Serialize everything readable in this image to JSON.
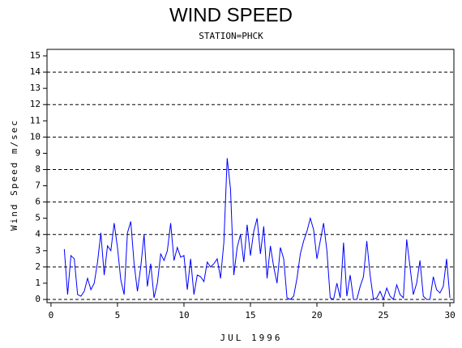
{
  "chart_data": {
    "type": "line",
    "title": "WIND SPEED",
    "subtitle": "STATION=PHCK",
    "y_label": "Wind Speed m/sec",
    "x_label": "JUL 1996",
    "color": "#0000ff",
    "grid": true,
    "xlim": [
      -0.3,
      30.3
    ],
    "xticks": [
      0,
      5,
      10,
      15,
      20,
      25,
      30
    ],
    "ylim": [
      -0.2,
      15.4
    ],
    "yticks": [
      0,
      1,
      2,
      3,
      4,
      5,
      6,
      7,
      8,
      9,
      10,
      11,
      12,
      13,
      14,
      15
    ],
    "gridlines": [
      0,
      2,
      4,
      6,
      8,
      10,
      12,
      14
    ],
    "x": [
      1,
      1.25,
      1.5,
      1.75,
      2,
      2.25,
      2.5,
      2.75,
      3,
      3.25,
      3.5,
      3.75,
      4,
      4.25,
      4.5,
      4.75,
      5,
      5.25,
      5.5,
      5.75,
      6,
      6.25,
      6.5,
      6.75,
      7,
      7.25,
      7.5,
      7.75,
      8,
      8.25,
      8.5,
      8.75,
      9,
      9.25,
      9.5,
      9.75,
      10,
      10.25,
      10.5,
      10.75,
      11,
      11.25,
      11.5,
      11.75,
      12,
      12.25,
      12.5,
      12.75,
      13,
      13.25,
      13.5,
      13.75,
      14,
      14.25,
      14.5,
      14.75,
      15,
      15.25,
      15.5,
      15.75,
      16,
      16.25,
      16.5,
      16.75,
      17,
      17.25,
      17.5,
      17.75,
      18,
      18.25,
      18.5,
      18.75,
      19,
      19.25,
      19.5,
      19.75,
      20,
      20.25,
      20.5,
      20.75,
      21,
      21.25,
      21.5,
      21.75,
      22,
      22.25,
      22.5,
      22.75,
      23,
      23.25,
      23.5,
      23.75,
      24,
      24.25,
      24.5,
      24.75,
      25,
      25.25,
      25.5,
      25.75,
      26,
      26.25,
      26.5,
      26.75,
      27,
      27.25,
      27.5,
      27.75,
      28,
      28.25,
      28.5,
      28.75,
      29,
      29.25,
      29.5,
      29.75,
      30
    ],
    "values": [
      3.1,
      0.3,
      2.7,
      2.5,
      0.3,
      0.2,
      0.5,
      1.3,
      0.6,
      1.0,
      2.3,
      4.1,
      1.5,
      3.3,
      3.0,
      4.7,
      3.2,
      1.2,
      0.3,
      4.1,
      4.8,
      2.2,
      0.5,
      2.0,
      4.0,
      0.8,
      2.2,
      0.1,
      1.0,
      2.8,
      2.4,
      3.0,
      4.7,
      2.4,
      3.2,
      2.6,
      2.7,
      0.6,
      2.5,
      0.3,
      1.5,
      1.4,
      1.1,
      2.3,
      2.0,
      2.2,
      2.5,
      1.3,
      3.5,
      8.7,
      6.8,
      1.5,
      3.2,
      4.0,
      2.3,
      4.6,
      2.7,
      4.2,
      5.0,
      2.8,
      4.5,
      1.3,
      3.3,
      2.0,
      1.0,
      3.2,
      2.5,
      0.1,
      0.0,
      0.2,
      1.3,
      2.8,
      3.6,
      4.2,
      5.0,
      4.3,
      2.5,
      3.6,
      4.7,
      3.0,
      0.1,
      0.0,
      1.0,
      0.1,
      3.5,
      0.2,
      1.5,
      0.0,
      0.0,
      0.8,
      1.4,
      3.6,
      1.5,
      0.0,
      0.1,
      0.5,
      0.0,
      0.7,
      0.2,
      0.0,
      0.9,
      0.3,
      0.1,
      3.7,
      2.0,
      0.3,
      1.0,
      2.4,
      0.2,
      0.0,
      0.0,
      1.4,
      0.6,
      0.4,
      0.8,
      2.5,
      0.1
    ]
  }
}
